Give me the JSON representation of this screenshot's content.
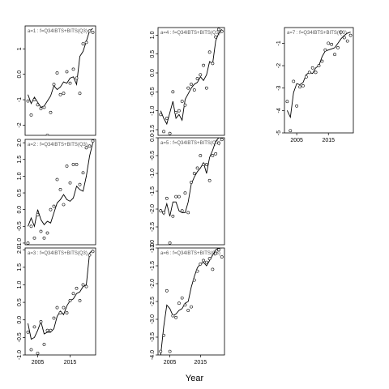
{
  "chart_data": {
    "type": "line",
    "xlabel": "Year",
    "x_ticks": [
      2005,
      2015
    ],
    "panels": [
      {
        "label": "a=1  :  f=Q34IBTS+BITS(Q3)",
        "ylim": [
          -2.4,
          1.9
        ],
        "yticks": [
          -2,
          -1,
          0,
          1
        ],
        "x": [
          2002,
          2003,
          2004,
          2005,
          2006,
          2007,
          2008,
          2009,
          2010,
          2011,
          2012,
          2013,
          2014,
          2015,
          2016,
          2017,
          2018,
          2019,
          2020,
          2021,
          2022
        ],
        "line": [
          -0.8,
          -1.15,
          -0.9,
          -1.1,
          -1.3,
          -1.25,
          -1.05,
          -0.85,
          -0.45,
          -0.6,
          -0.5,
          -0.3,
          -0.35,
          -0.15,
          -0.1,
          -0.4,
          0.7,
          0.9,
          1.3,
          1.7,
          1.8
        ],
        "points": [
          -1.05,
          -1.6,
          -1.0,
          -1.2,
          -1.35,
          -1.3,
          -2.4,
          -1.5,
          -0.4,
          0.05,
          -0.8,
          -0.75,
          0.1,
          -0.35,
          0.2,
          -0.15,
          -0.75,
          1.2,
          1.25,
          1.7,
          1.65
        ]
      },
      {
        "label": "a=2  :  f=Q34IBTS+BITS(Q3)",
        "ylim": [
          -1.05,
          2.1
        ],
        "yticks": [
          -1.0,
          -0.5,
          0.0,
          0.5,
          1.0,
          1.5,
          2.0
        ],
        "x": [
          2002,
          2003,
          2004,
          2005,
          2006,
          2007,
          2008,
          2009,
          2010,
          2011,
          2012,
          2013,
          2014,
          2015,
          2016,
          2017,
          2018,
          2019,
          2020,
          2021,
          2022
        ],
        "line": [
          -0.5,
          -0.25,
          -0.5,
          0.0,
          -0.3,
          -0.45,
          -0.35,
          -0.4,
          -0.1,
          0.2,
          0.3,
          0.45,
          0.3,
          0.25,
          0.35,
          0.7,
          0.6,
          0.55,
          1.0,
          1.6,
          2.0
        ],
        "points": [
          -1.0,
          -0.5,
          -0.85,
          -0.15,
          -0.65,
          -0.85,
          -0.7,
          0.0,
          0.1,
          0.9,
          0.6,
          0.15,
          1.3,
          0.8,
          1.35,
          1.35,
          0.75,
          1.1,
          1.85,
          1.9,
          2.05
        ]
      },
      {
        "label": "a=3  :  f=Q34IBTS+BITS(Q3)",
        "ylim": [
          -1.0,
          2.05
        ],
        "yticks": [
          -1.0,
          -0.5,
          0.0,
          0.5,
          1.0,
          1.5,
          2.0
        ],
        "x": [
          2002,
          2003,
          2004,
          2005,
          2006,
          2007,
          2008,
          2009,
          2010,
          2011,
          2012,
          2013,
          2014,
          2015,
          2016,
          2017,
          2018,
          2019,
          2020,
          2021,
          2022
        ],
        "line": [
          -0.1,
          -0.55,
          -0.5,
          -0.3,
          -0.05,
          -0.4,
          -0.35,
          -0.35,
          -0.25,
          0.1,
          0.25,
          0.15,
          0.4,
          0.55,
          0.6,
          0.75,
          0.8,
          0.95,
          1.0,
          1.9,
          2.0
        ],
        "points": [
          -0.35,
          -0.85,
          -0.2,
          -0.95,
          -0.05,
          -0.7,
          -0.3,
          -0.3,
          0.05,
          0.35,
          0.2,
          0.35,
          0.2,
          0.55,
          0.75,
          0.9,
          0.55,
          1.0,
          0.95,
          1.85,
          1.95
        ]
      },
      {
        "label": "a=4  :  f=Q34IBTS+BITS(Q3)",
        "ylim": [
          -1.65,
          1.2
        ],
        "yticks": [
          -1.5,
          -1.0,
          -0.5,
          0.0,
          0.5,
          1.0
        ],
        "x": [
          2002,
          2003,
          2004,
          2005,
          2006,
          2007,
          2008,
          2009,
          2010,
          2011,
          2012,
          2013,
          2014,
          2015,
          2016,
          2017,
          2018,
          2019,
          2020,
          2021,
          2022
        ],
        "line": [
          -1.0,
          -1.2,
          -1.35,
          -1.05,
          -0.75,
          -1.2,
          -1.1,
          -1.25,
          -0.7,
          -0.55,
          -0.4,
          -0.3,
          -0.25,
          -0.1,
          -0.2,
          -0.05,
          0.3,
          0.25,
          0.85,
          1.05,
          1.15
        ],
        "points": [
          -1.1,
          -1.55,
          -1.2,
          -1.6,
          -0.5,
          -1.05,
          -1.0,
          -0.75,
          -0.85,
          -0.4,
          -0.3,
          -0.45,
          -0.15,
          -0.05,
          0.2,
          -0.4,
          0.55,
          0.25,
          0.95,
          1.15,
          1.1
        ]
      },
      {
        "label": "a=5  :  f=Q34IBTS+BITS(Q3)",
        "ylim": [
          -3.0,
          0.0
        ],
        "yticks": [
          -3.0,
          -2.5,
          -2.0,
          -1.5,
          -1.0,
          -0.5,
          0.0
        ],
        "x": [
          2002,
          2003,
          2004,
          2005,
          2006,
          2007,
          2008,
          2009,
          2010,
          2011,
          2012,
          2013,
          2014,
          2015,
          2016,
          2017,
          2018,
          2019,
          2020,
          2021,
          2022
        ],
        "line": [
          -2.0,
          -2.15,
          -1.85,
          -2.2,
          -1.8,
          -1.8,
          -2.05,
          -2.1,
          -2.1,
          -1.8,
          -1.3,
          -1.1,
          -0.95,
          -0.85,
          -0.7,
          -1.0,
          -0.55,
          -0.35,
          -0.1,
          0.0,
          0.0
        ],
        "points": [
          -2.05,
          -2.1,
          -1.7,
          -2.95,
          -2.2,
          -1.65,
          -1.65,
          -2.05,
          -1.55,
          -2.1,
          -1.25,
          -1.0,
          -0.85,
          -0.5,
          -0.75,
          -0.75,
          -1.2,
          -0.5,
          -0.45,
          -0.15,
          -0.05
        ]
      },
      {
        "label": "a=6  :  f=Q34IBTS+BITS(Q3)",
        "ylim": [
          -4.0,
          -1.0
        ],
        "yticks": [
          -4.0,
          -3.5,
          -3.0,
          -2.5,
          -2.0,
          -1.5,
          -1.0
        ],
        "x": [
          2002,
          2003,
          2004,
          2005,
          2006,
          2007,
          2008,
          2009,
          2010,
          2011,
          2012,
          2013,
          2014,
          2015,
          2016,
          2017,
          2018,
          2019,
          2020,
          2021,
          2022
        ],
        "line": [
          -4.0,
          -3.2,
          -2.6,
          -2.7,
          -2.9,
          -2.85,
          -2.75,
          -2.7,
          -2.55,
          -2.5,
          -2.1,
          -1.8,
          -1.55,
          -1.45,
          -1.4,
          -1.5,
          -1.35,
          -1.2,
          -1.05,
          -1.0,
          -1.0
        ],
        "points": [
          -3.9,
          -3.45,
          -2.2,
          -3.9,
          -2.9,
          -2.95,
          -2.55,
          -2.4,
          -2.6,
          -2.75,
          -2.65,
          -1.9,
          -1.65,
          -1.45,
          -1.35,
          -1.4,
          -1.3,
          -1.6,
          -1.15,
          -1.05,
          -1.25
        ]
      },
      {
        "label": "a=7  :  f=Q34IBTS+BITS(Q3)",
        "ylim": [
          -5.0,
          -0.3
        ],
        "yticks": [
          -5,
          -4,
          -3,
          -2,
          -1
        ],
        "x": [
          2002,
          2003,
          2004,
          2005,
          2006,
          2007,
          2008,
          2009,
          2010,
          2011,
          2012,
          2013,
          2014,
          2015,
          2016,
          2017,
          2018,
          2019,
          2020,
          2021,
          2022
        ],
        "line": [
          -4.0,
          -4.3,
          -3.2,
          -2.8,
          -2.85,
          -2.75,
          -2.4,
          -2.3,
          -2.35,
          -2.1,
          -2.0,
          -1.6,
          -1.35,
          -1.3,
          -1.25,
          -1.2,
          -1.0,
          -0.8,
          -0.65,
          -0.55,
          -0.5
        ],
        "points": [
          -3.6,
          -4.9,
          -2.7,
          -3.8,
          -2.95,
          -2.9,
          -2.5,
          -2.3,
          -2.1,
          -2.3,
          -2.0,
          -1.8,
          -1.3,
          -1.0,
          -1.05,
          -1.5,
          -1.2,
          -0.5,
          -0.75,
          -0.9,
          -0.65
        ]
      }
    ]
  }
}
